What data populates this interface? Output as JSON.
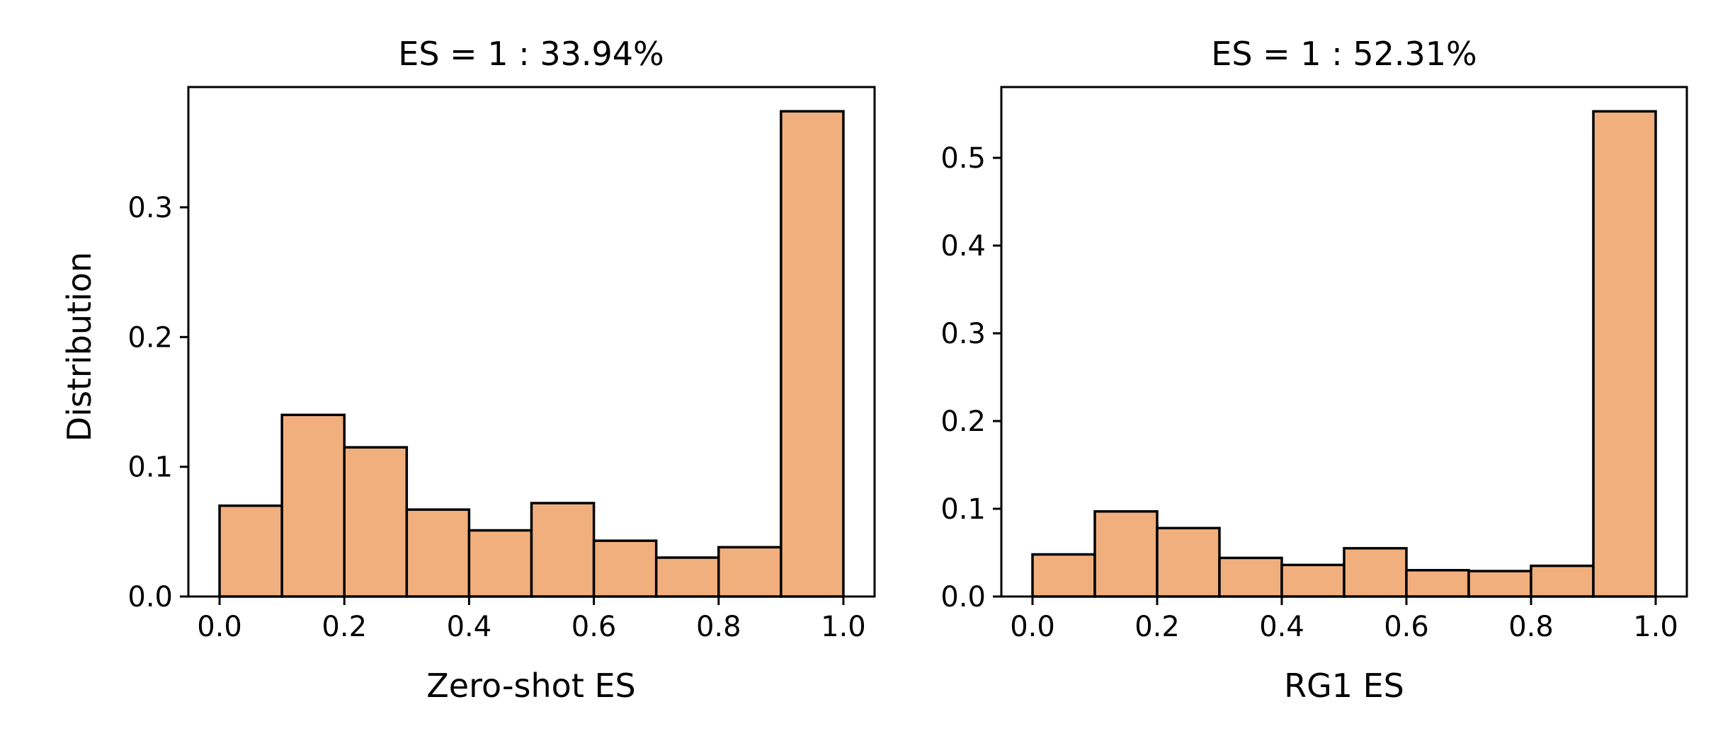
{
  "chart_data": [
    {
      "type": "bar",
      "title": "ES = 1 : 33.94%",
      "xlabel": "Zero-shot ES",
      "ylabel": "Distribution",
      "bin_edges": [
        0.0,
        0.1,
        0.2,
        0.3,
        0.4,
        0.5,
        0.6,
        0.7,
        0.8,
        0.9,
        1.0
      ],
      "values": [
        0.07,
        0.14,
        0.115,
        0.067,
        0.051,
        0.072,
        0.043,
        0.03,
        0.038,
        0.374
      ],
      "xlim": [
        -0.05,
        1.05
      ],
      "ylim": [
        0,
        0.3927
      ],
      "xticks": [
        0.0,
        0.2,
        0.4,
        0.6,
        0.8,
        1.0
      ],
      "xtick_labels": [
        "0.0",
        "0.2",
        "0.4",
        "0.6",
        "0.8",
        "1.0"
      ],
      "yticks": [
        0.0,
        0.1,
        0.2,
        0.3
      ],
      "ytick_labels": [
        "0.0",
        "0.1",
        "0.2",
        "0.3"
      ],
      "color": "#F2AF7E",
      "grid": false
    },
    {
      "type": "bar",
      "title": "ES = 1 : 52.31%",
      "xlabel": "RG1 ES",
      "ylabel": "",
      "bin_edges": [
        0.0,
        0.1,
        0.2,
        0.3,
        0.4,
        0.5,
        0.6,
        0.7,
        0.8,
        0.9,
        1.0
      ],
      "values": [
        0.048,
        0.097,
        0.078,
        0.044,
        0.036,
        0.055,
        0.03,
        0.029,
        0.035,
        0.553
      ],
      "xlim": [
        -0.05,
        1.05
      ],
      "ylim": [
        0,
        0.5807
      ],
      "xticks": [
        0.0,
        0.2,
        0.4,
        0.6,
        0.8,
        1.0
      ],
      "xtick_labels": [
        "0.0",
        "0.2",
        "0.4",
        "0.6",
        "0.8",
        "1.0"
      ],
      "yticks": [
        0.0,
        0.1,
        0.2,
        0.3,
        0.4,
        0.5
      ],
      "ytick_labels": [
        "0.0",
        "0.1",
        "0.2",
        "0.3",
        "0.4",
        "0.5"
      ],
      "color": "#F2AF7E",
      "grid": false
    }
  ]
}
